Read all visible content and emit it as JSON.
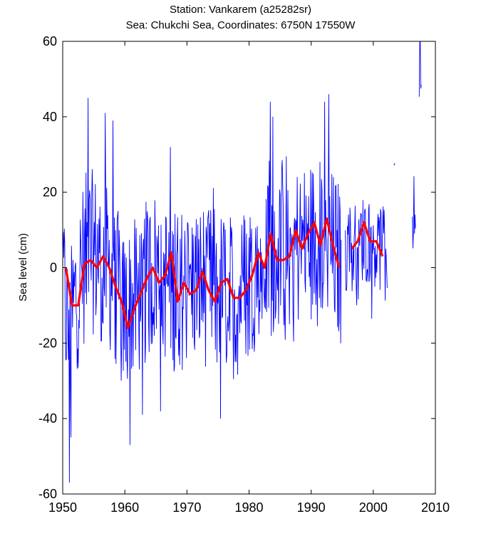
{
  "title_line1": "Station: Vankarem (a25282sr)",
  "title_line2": "Sea: Chukchi Sea, Coordinates: 6750N 17550W",
  "chart_data": {
    "type": "line",
    "title": "Station: Vankarem (a25282sr)",
    "subtitle": "Sea: Chukchi Sea, Coordinates: 6750N 17550W",
    "xlabel": "",
    "ylabel": "Sea level (cm)",
    "xlim": [
      1950,
      2010
    ],
    "ylim": [
      -60,
      60
    ],
    "xticks": [
      "1950",
      "1960",
      "1970",
      "1980",
      "1990",
      "2000",
      "2010"
    ],
    "yticks": [
      "60",
      "40",
      "20",
      "0",
      "-20",
      "-40",
      "-60"
    ],
    "grid": false,
    "series": [
      {
        "color": "#0000ff",
        "kind": "monthly",
        "segments": [
          {
            "start": 1950.0,
            "end": 1994.9,
            "amplitude": 22,
            "anchors": [
              [
                1950,
                -2
              ],
              [
                1951,
                -20
              ],
              [
                1952,
                -8
              ],
              [
                1954,
                5
              ],
              [
                1956,
                3
              ],
              [
                1958,
                -2
              ],
              [
                1960,
                -12
              ],
              [
                1962,
                -8
              ],
              [
                1965,
                0
              ],
              [
                1968,
                -6
              ],
              [
                1972,
                -4
              ],
              [
                1975,
                -6
              ],
              [
                1978,
                -8
              ],
              [
                1980,
                -2
              ],
              [
                1982,
                2
              ],
              [
                1985,
                4
              ],
              [
                1988,
                6
              ],
              [
                1992,
                8
              ],
              [
                1995,
                0
              ]
            ]
          },
          {
            "start": 1995.5,
            "end": 2002.3,
            "amplitude": 12,
            "anchors": [
              [
                1995.5,
                4
              ],
              [
                1998,
                8
              ],
              [
                2000,
                7
              ],
              [
                2002,
                4
              ]
            ]
          },
          {
            "start": 2003.3,
            "end": 2003.5,
            "amplitude": 2,
            "anchors": [
              [
                2003.3,
                28
              ],
              [
                2003.5,
                27
              ]
            ]
          },
          {
            "start": 2006.3,
            "end": 2006.8,
            "amplitude": 10,
            "anchors": [
              [
                2006.3,
                12
              ],
              [
                2006.8,
                18
              ]
            ]
          },
          {
            "start": 2007.4,
            "end": 2007.8,
            "amplitude": 8,
            "anchors": [
              [
                2007.4,
                52
              ],
              [
                2007.8,
                56
              ]
            ]
          }
        ],
        "extremes": [
          [
            1951.1,
            -57
          ],
          [
            1951.3,
            -45
          ],
          [
            1954.1,
            45
          ],
          [
            1960.8,
            -47
          ],
          [
            1962.8,
            -39
          ],
          [
            1975.4,
            -40
          ],
          [
            1983.4,
            44
          ],
          [
            1992.8,
            46
          ],
          [
            1983.8,
            40
          ],
          [
            1956.8,
            41
          ],
          [
            1958.1,
            39
          ],
          [
            2007.6,
            60
          ]
        ]
      },
      {
        "color": "#ff0000",
        "kind": "annual",
        "segments": [
          [
            [
              1950.5,
              0
            ],
            [
              1951.5,
              -10
            ],
            [
              1952.5,
              -10
            ],
            [
              1953.5,
              1
            ],
            [
              1954.5,
              2
            ],
            [
              1955.5,
              0
            ],
            [
              1956.5,
              3
            ],
            [
              1957.5,
              0
            ],
            [
              1958.5,
              -5
            ],
            [
              1959.5,
              -9
            ],
            [
              1960.5,
              -16
            ],
            [
              1961.5,
              -11
            ],
            [
              1962.5,
              -7
            ],
            [
              1963.5,
              -3
            ],
            [
              1964.5,
              0
            ],
            [
              1965.5,
              -4
            ],
            [
              1966.5,
              -2
            ],
            [
              1967.5,
              4
            ],
            [
              1968.5,
              -9
            ],
            [
              1969.5,
              -4
            ],
            [
              1970.5,
              -7
            ],
            [
              1971.5,
              -6
            ],
            [
              1972.5,
              -1
            ],
            [
              1973.5,
              -6
            ],
            [
              1974.5,
              -9
            ],
            [
              1975.5,
              -4
            ],
            [
              1976.5,
              -3
            ],
            [
              1977.5,
              -8
            ],
            [
              1978.5,
              -8
            ],
            [
              1979.5,
              -6
            ],
            [
              1980.5,
              -2
            ],
            [
              1981.5,
              4
            ],
            [
              1982.5,
              0
            ],
            [
              1983.5,
              9
            ],
            [
              1984.5,
              2
            ],
            [
              1985.5,
              2
            ],
            [
              1986.5,
              3
            ],
            [
              1987.5,
              10
            ],
            [
              1988.5,
              5
            ],
            [
              1989.5,
              9
            ],
            [
              1990.5,
              12
            ],
            [
              1991.5,
              6
            ],
            [
              1992.5,
              13
            ],
            [
              1993.5,
              6
            ],
            [
              1994.5,
              0
            ]
          ],
          [
            [
              1996.5,
              5
            ],
            [
              1997.5,
              7
            ],
            [
              1998.5,
              12
            ],
            [
              1999.5,
              7
            ],
            [
              2000.5,
              7
            ],
            [
              2001.5,
              3
            ]
          ]
        ]
      }
    ]
  }
}
